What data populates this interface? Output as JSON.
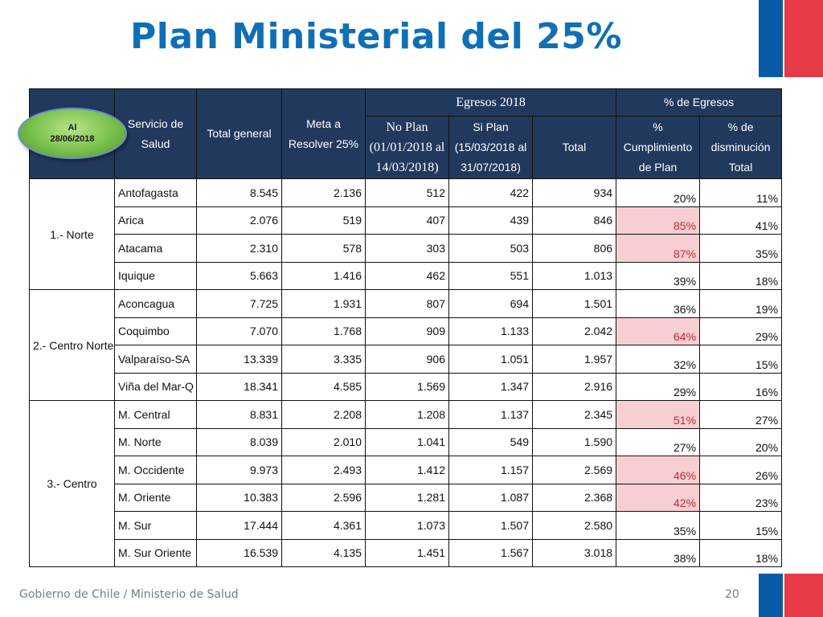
{
  "title": "Plan Ministerial del 25%",
  "badge": {
    "line1": "Al",
    "line2": "28/06/2018"
  },
  "header": {
    "servicio": "Servicio de Salud",
    "total_general": "Total general",
    "meta": "Meta a Resolver 25%",
    "egresos_group": "Egresos 2018",
    "pct_group": "% de Egresos",
    "no_plan": "No Plan (01/01/2018 al 14/03/2018)",
    "si_plan": "Si Plan (15/03/2018 al 31/07/2018)",
    "total": "Total",
    "cumplimiento": "% Cumplimiento de Plan",
    "disminucion": "% de disminución Total"
  },
  "regions": [
    "1.- Norte",
    "2.- Centro Norte",
    "3.- Centro"
  ],
  "rows": [
    {
      "servicio": "Antofagasta",
      "total_general": "8.545",
      "meta": "2.136",
      "no_plan": "512",
      "si_plan": "422",
      "total": "934",
      "cumplimiento": "20%",
      "disminucion": "11%"
    },
    {
      "servicio": "Arica",
      "total_general": "2.076",
      "meta": "519",
      "no_plan": "407",
      "si_plan": "439",
      "total": "846",
      "cumplimiento": "85%",
      "disminucion": "41%"
    },
    {
      "servicio": "Atacama",
      "total_general": "2.310",
      "meta": "578",
      "no_plan": "303",
      "si_plan": "503",
      "total": "806",
      "cumplimiento": "87%",
      "disminucion": "35%"
    },
    {
      "servicio": "Iquique",
      "total_general": "5.663",
      "meta": "1.416",
      "no_plan": "462",
      "si_plan": "551",
      "total": "1.013",
      "cumplimiento": "39%",
      "disminucion": "18%"
    },
    {
      "servicio": "Aconcagua",
      "total_general": "7.725",
      "meta": "1.931",
      "no_plan": "807",
      "si_plan": "694",
      "total": "1.501",
      "cumplimiento": "36%",
      "disminucion": "19%"
    },
    {
      "servicio": "Coquimbo",
      "total_general": "7.070",
      "meta": "1.768",
      "no_plan": "909",
      "si_plan": "1.133",
      "total": "2.042",
      "cumplimiento": "64%",
      "disminucion": "29%"
    },
    {
      "servicio": "Valparaíso-SA",
      "total_general": "13.339",
      "meta": "3.335",
      "no_plan": "906",
      "si_plan": "1.051",
      "total": "1.957",
      "cumplimiento": "32%",
      "disminucion": "15%"
    },
    {
      "servicio": "Viña del Mar-Q",
      "total_general": "18.341",
      "meta": "4.585",
      "no_plan": "1.569",
      "si_plan": "1.347",
      "total": "2.916",
      "cumplimiento": "29%",
      "disminucion": "16%"
    },
    {
      "servicio": "M. Central",
      "total_general": "8.831",
      "meta": "2.208",
      "no_plan": "1.208",
      "si_plan": "1.137",
      "total": "2.345",
      "cumplimiento": "51%",
      "disminucion": "27%"
    },
    {
      "servicio": "M. Norte",
      "total_general": "8.039",
      "meta": "2.010",
      "no_plan": "1.041",
      "si_plan": "549",
      "total": "1.590",
      "cumplimiento": "27%",
      "disminucion": "20%"
    },
    {
      "servicio": "M. Occidente",
      "total_general": "9.973",
      "meta": "2.493",
      "no_plan": "1.412",
      "si_plan": "1.157",
      "total": "2.569",
      "cumplimiento": "46%",
      "disminucion": "26%"
    },
    {
      "servicio": "M. Oriente",
      "total_general": "10.383",
      "meta": "2.596",
      "no_plan": "1.281",
      "si_plan": "1.087",
      "total": "2.368",
      "cumplimiento": "42%",
      "disminucion": "23%"
    },
    {
      "servicio": "M. Sur",
      "total_general": "17.444",
      "meta": "4.361",
      "no_plan": "1.073",
      "si_plan": "1.507",
      "total": "2.580",
      "cumplimiento": "35%",
      "disminucion": "15%"
    },
    {
      "servicio": "M. Sur Oriente",
      "total_general": "16.539",
      "meta": "4.135",
      "no_plan": "1.451",
      "si_plan": "1.567",
      "total": "3.018",
      "cumplimiento": "38%",
      "disminucion": "18%"
    }
  ],
  "highlight_color": "#f7cfd2",
  "highlight_text_color": "#c42a36",
  "header_color": "#22395e",
  "footer": {
    "text": "Gobierno de Chile / Ministerio de Salud",
    "page": "20"
  }
}
